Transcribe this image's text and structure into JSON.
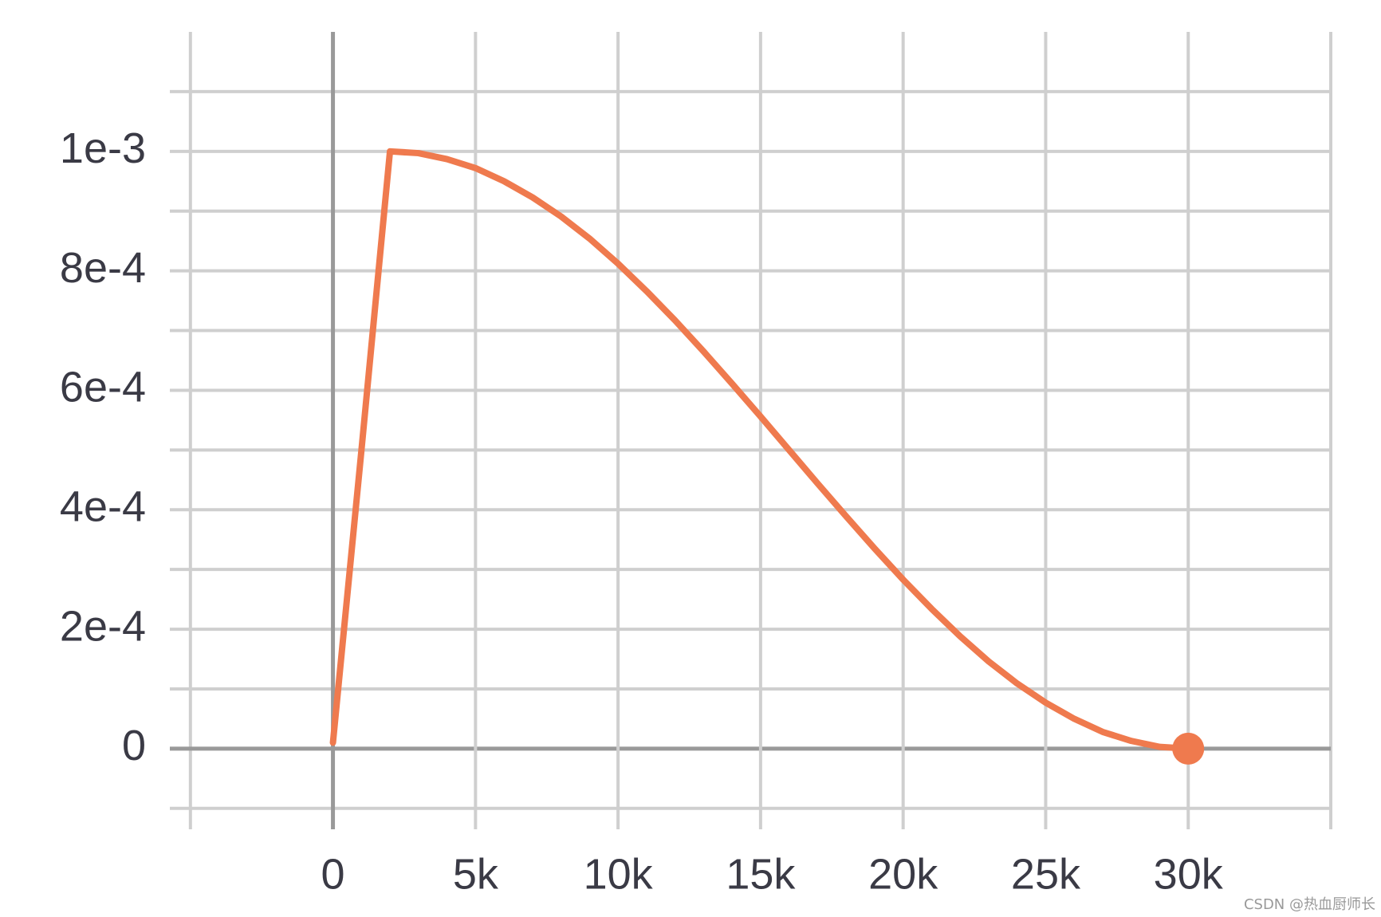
{
  "chart_data": {
    "type": "line",
    "x": [
      0,
      1000,
      2000,
      3000,
      4000,
      5000,
      6000,
      7000,
      8000,
      9000,
      10000,
      11000,
      12000,
      13000,
      14000,
      15000,
      16000,
      17000,
      18000,
      19000,
      20000,
      21000,
      22000,
      23000,
      24000,
      25000,
      26000,
      27000,
      28000,
      29000,
      30000
    ],
    "values": [
      1e-05,
      0.0005,
      0.001,
      0.000997,
      0.000987,
      0.000972,
      0.00095,
      0.000923,
      0.000891,
      0.000854,
      0.000812,
      0.000766,
      0.000717,
      0.000665,
      0.000611,
      0.000556,
      0.0005,
      0.000444,
      0.000389,
      0.000335,
      0.000283,
      0.000234,
      0.000188,
      0.000146,
      0.000109,
      7.7e-05,
      5e-05,
      2.8e-05,
      1.3e-05,
      3e-06,
      0
    ],
    "color": "#ef7a4e",
    "xlim": [
      -5000,
      35000
    ],
    "ylim": [
      -0.000135,
      0.0012
    ],
    "xticks": [
      {
        "value": 0,
        "label": "0"
      },
      {
        "value": 5000,
        "label": "5k"
      },
      {
        "value": 10000,
        "label": "10k"
      },
      {
        "value": 15000,
        "label": "15k"
      },
      {
        "value": 20000,
        "label": "20k"
      },
      {
        "value": 25000,
        "label": "25k"
      },
      {
        "value": 30000,
        "label": "30k"
      }
    ],
    "x_minor_ticks": [
      -5000,
      35000
    ],
    "yticks": [
      {
        "value": 0,
        "label": "0"
      },
      {
        "value": 0.0002,
        "label": "2e-4"
      },
      {
        "value": 0.0004,
        "label": "4e-4"
      },
      {
        "value": 0.0006,
        "label": "6e-4"
      },
      {
        "value": 0.0008,
        "label": "8e-4"
      },
      {
        "value": 0.001,
        "label": "1e-3"
      }
    ],
    "y_minor_ticks": [
      -0.0001,
      0.0001,
      0.0003,
      0.0005,
      0.0007,
      0.0009,
      0.0011
    ],
    "grid": true,
    "watermark": "CSDN @热血厨师长"
  }
}
